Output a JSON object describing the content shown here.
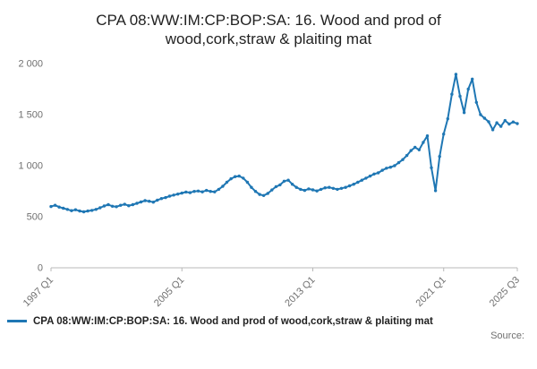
{
  "title": "CPA 08:WW:IM:CP:BOP:SA: 16. Wood and prod of wood,cork,straw & plaiting mat",
  "legend": {
    "label": "CPA 08:WW:IM:CP:BOP:SA: 16. Wood and prod of wood,cork,straw & plaiting mat"
  },
  "source_label": "Source:",
  "chart_data": {
    "type": "line",
    "title": "CPA 08:WW:IM:CP:BOP:SA: 16. Wood and prod of wood,cork,straw & plaiting mat",
    "frequency": "quarterly",
    "x_start": "1997 Q1",
    "x_end": "2025 Q3",
    "ylim": [
      0,
      2000
    ],
    "grid": false,
    "legend_position": "bottom-left",
    "line_color": "#1f77b4",
    "marker": "circle",
    "y_ticks": [
      {
        "value": 0,
        "label": "0"
      },
      {
        "value": 500,
        "label": "500"
      },
      {
        "value": 1000,
        "label": "1 000"
      },
      {
        "value": 1500,
        "label": "1 500"
      },
      {
        "value": 2000,
        "label": "2 000"
      }
    ],
    "x_ticks": [
      {
        "index": 0,
        "label": "1997 Q1"
      },
      {
        "index": 32,
        "label": "2005 Q1"
      },
      {
        "index": 64,
        "label": "2013 Q1"
      },
      {
        "index": 96,
        "label": "2021 Q1"
      },
      {
        "index": 114,
        "label": "2025 Q3"
      }
    ],
    "series": [
      {
        "name": "CPA 08:WW:IM:CP:BOP:SA: 16. Wood and prod of wood,cork,straw & plaiting mat",
        "values": [
          600,
          612,
          595,
          583,
          572,
          560,
          568,
          556,
          548,
          556,
          562,
          572,
          588,
          605,
          618,
          603,
          598,
          612,
          622,
          608,
          618,
          632,
          645,
          658,
          652,
          643,
          662,
          678,
          688,
          702,
          712,
          722,
          732,
          742,
          736,
          748,
          752,
          744,
          758,
          748,
          744,
          768,
          798,
          838,
          872,
          893,
          898,
          878,
          838,
          788,
          748,
          718,
          708,
          728,
          762,
          795,
          812,
          848,
          858,
          818,
          788,
          768,
          758,
          773,
          763,
          753,
          768,
          783,
          788,
          778,
          768,
          778,
          788,
          803,
          818,
          838,
          858,
          878,
          898,
          918,
          930,
          955,
          975,
          985,
          1000,
          1030,
          1060,
          1100,
          1148,
          1180,
          1155,
          1228,
          1292,
          980,
          755,
          1090,
          1310,
          1460,
          1700,
          1895,
          1680,
          1520,
          1750,
          1848,
          1620,
          1500,
          1465,
          1430,
          1352,
          1420,
          1385,
          1442,
          1408,
          1428,
          1412
        ]
      }
    ]
  }
}
